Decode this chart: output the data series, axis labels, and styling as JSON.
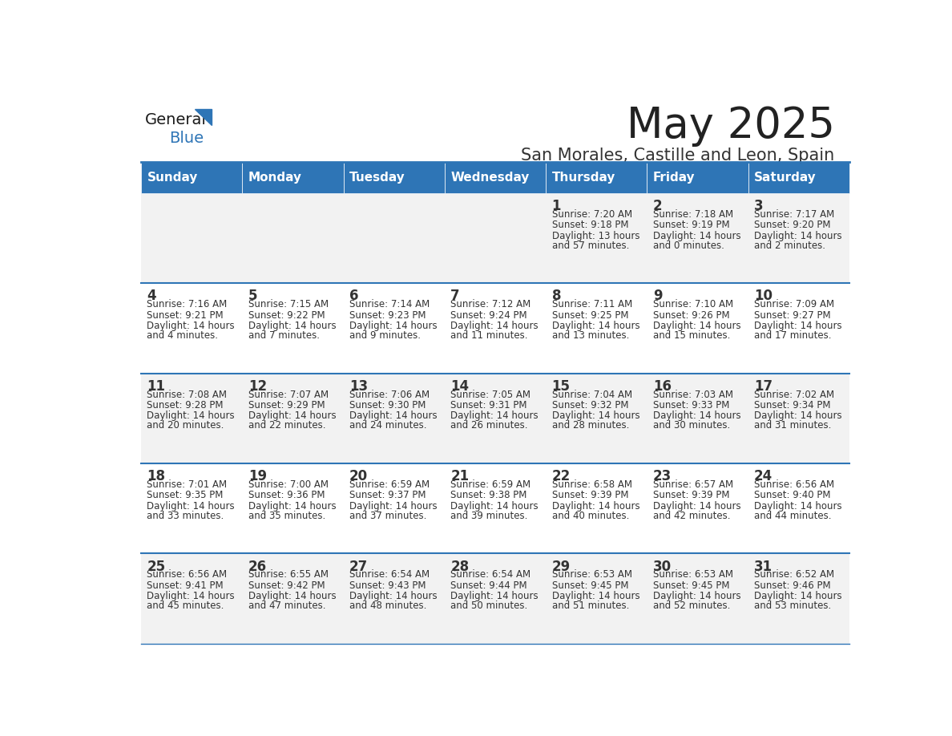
{
  "title": "May 2025",
  "subtitle": "San Morales, Castille and Leon, Spain",
  "header_bg": "#2E75B6",
  "header_text_color": "#FFFFFF",
  "cell_bg_odd": "#F2F2F2",
  "cell_bg_even": "#FFFFFF",
  "row_line_color": "#2E75B6",
  "text_color": "#333333",
  "days_of_week": [
    "Sunday",
    "Monday",
    "Tuesday",
    "Wednesday",
    "Thursday",
    "Friday",
    "Saturday"
  ],
  "calendar_data": [
    [
      {
        "day": "",
        "sunrise": "",
        "sunset": "",
        "daylight": ""
      },
      {
        "day": "",
        "sunrise": "",
        "sunset": "",
        "daylight": ""
      },
      {
        "day": "",
        "sunrise": "",
        "sunset": "",
        "daylight": ""
      },
      {
        "day": "",
        "sunrise": "",
        "sunset": "",
        "daylight": ""
      },
      {
        "day": "1",
        "sunrise": "Sunrise: 7:20 AM",
        "sunset": "Sunset: 9:18 PM",
        "daylight": "Daylight: 13 hours\nand 57 minutes."
      },
      {
        "day": "2",
        "sunrise": "Sunrise: 7:18 AM",
        "sunset": "Sunset: 9:19 PM",
        "daylight": "Daylight: 14 hours\nand 0 minutes."
      },
      {
        "day": "3",
        "sunrise": "Sunrise: 7:17 AM",
        "sunset": "Sunset: 9:20 PM",
        "daylight": "Daylight: 14 hours\nand 2 minutes."
      }
    ],
    [
      {
        "day": "4",
        "sunrise": "Sunrise: 7:16 AM",
        "sunset": "Sunset: 9:21 PM",
        "daylight": "Daylight: 14 hours\nand 4 minutes."
      },
      {
        "day": "5",
        "sunrise": "Sunrise: 7:15 AM",
        "sunset": "Sunset: 9:22 PM",
        "daylight": "Daylight: 14 hours\nand 7 minutes."
      },
      {
        "day": "6",
        "sunrise": "Sunrise: 7:14 AM",
        "sunset": "Sunset: 9:23 PM",
        "daylight": "Daylight: 14 hours\nand 9 minutes."
      },
      {
        "day": "7",
        "sunrise": "Sunrise: 7:12 AM",
        "sunset": "Sunset: 9:24 PM",
        "daylight": "Daylight: 14 hours\nand 11 minutes."
      },
      {
        "day": "8",
        "sunrise": "Sunrise: 7:11 AM",
        "sunset": "Sunset: 9:25 PM",
        "daylight": "Daylight: 14 hours\nand 13 minutes."
      },
      {
        "day": "9",
        "sunrise": "Sunrise: 7:10 AM",
        "sunset": "Sunset: 9:26 PM",
        "daylight": "Daylight: 14 hours\nand 15 minutes."
      },
      {
        "day": "10",
        "sunrise": "Sunrise: 7:09 AM",
        "sunset": "Sunset: 9:27 PM",
        "daylight": "Daylight: 14 hours\nand 17 minutes."
      }
    ],
    [
      {
        "day": "11",
        "sunrise": "Sunrise: 7:08 AM",
        "sunset": "Sunset: 9:28 PM",
        "daylight": "Daylight: 14 hours\nand 20 minutes."
      },
      {
        "day": "12",
        "sunrise": "Sunrise: 7:07 AM",
        "sunset": "Sunset: 9:29 PM",
        "daylight": "Daylight: 14 hours\nand 22 minutes."
      },
      {
        "day": "13",
        "sunrise": "Sunrise: 7:06 AM",
        "sunset": "Sunset: 9:30 PM",
        "daylight": "Daylight: 14 hours\nand 24 minutes."
      },
      {
        "day": "14",
        "sunrise": "Sunrise: 7:05 AM",
        "sunset": "Sunset: 9:31 PM",
        "daylight": "Daylight: 14 hours\nand 26 minutes."
      },
      {
        "day": "15",
        "sunrise": "Sunrise: 7:04 AM",
        "sunset": "Sunset: 9:32 PM",
        "daylight": "Daylight: 14 hours\nand 28 minutes."
      },
      {
        "day": "16",
        "sunrise": "Sunrise: 7:03 AM",
        "sunset": "Sunset: 9:33 PM",
        "daylight": "Daylight: 14 hours\nand 30 minutes."
      },
      {
        "day": "17",
        "sunrise": "Sunrise: 7:02 AM",
        "sunset": "Sunset: 9:34 PM",
        "daylight": "Daylight: 14 hours\nand 31 minutes."
      }
    ],
    [
      {
        "day": "18",
        "sunrise": "Sunrise: 7:01 AM",
        "sunset": "Sunset: 9:35 PM",
        "daylight": "Daylight: 14 hours\nand 33 minutes."
      },
      {
        "day": "19",
        "sunrise": "Sunrise: 7:00 AM",
        "sunset": "Sunset: 9:36 PM",
        "daylight": "Daylight: 14 hours\nand 35 minutes."
      },
      {
        "day": "20",
        "sunrise": "Sunrise: 6:59 AM",
        "sunset": "Sunset: 9:37 PM",
        "daylight": "Daylight: 14 hours\nand 37 minutes."
      },
      {
        "day": "21",
        "sunrise": "Sunrise: 6:59 AM",
        "sunset": "Sunset: 9:38 PM",
        "daylight": "Daylight: 14 hours\nand 39 minutes."
      },
      {
        "day": "22",
        "sunrise": "Sunrise: 6:58 AM",
        "sunset": "Sunset: 9:39 PM",
        "daylight": "Daylight: 14 hours\nand 40 minutes."
      },
      {
        "day": "23",
        "sunrise": "Sunrise: 6:57 AM",
        "sunset": "Sunset: 9:39 PM",
        "daylight": "Daylight: 14 hours\nand 42 minutes."
      },
      {
        "day": "24",
        "sunrise": "Sunrise: 6:56 AM",
        "sunset": "Sunset: 9:40 PM",
        "daylight": "Daylight: 14 hours\nand 44 minutes."
      }
    ],
    [
      {
        "day": "25",
        "sunrise": "Sunrise: 6:56 AM",
        "sunset": "Sunset: 9:41 PM",
        "daylight": "Daylight: 14 hours\nand 45 minutes."
      },
      {
        "day": "26",
        "sunrise": "Sunrise: 6:55 AM",
        "sunset": "Sunset: 9:42 PM",
        "daylight": "Daylight: 14 hours\nand 47 minutes."
      },
      {
        "day": "27",
        "sunrise": "Sunrise: 6:54 AM",
        "sunset": "Sunset: 9:43 PM",
        "daylight": "Daylight: 14 hours\nand 48 minutes."
      },
      {
        "day": "28",
        "sunrise": "Sunrise: 6:54 AM",
        "sunset": "Sunset: 9:44 PM",
        "daylight": "Daylight: 14 hours\nand 50 minutes."
      },
      {
        "day": "29",
        "sunrise": "Sunrise: 6:53 AM",
        "sunset": "Sunset: 9:45 PM",
        "daylight": "Daylight: 14 hours\nand 51 minutes."
      },
      {
        "day": "30",
        "sunrise": "Sunrise: 6:53 AM",
        "sunset": "Sunset: 9:45 PM",
        "daylight": "Daylight: 14 hours\nand 52 minutes."
      },
      {
        "day": "31",
        "sunrise": "Sunrise: 6:52 AM",
        "sunset": "Sunset: 9:46 PM",
        "daylight": "Daylight: 14 hours\nand 53 minutes."
      }
    ]
  ]
}
